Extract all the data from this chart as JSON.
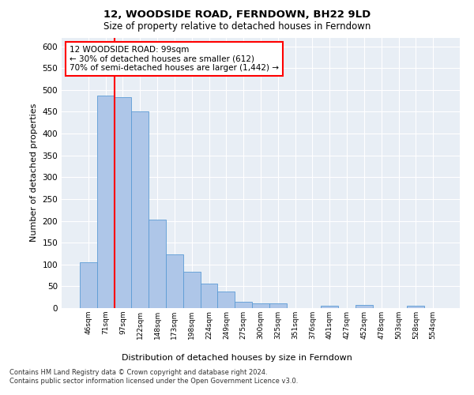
{
  "title1": "12, WOODSIDE ROAD, FERNDOWN, BH22 9LD",
  "title2": "Size of property relative to detached houses in Ferndown",
  "xlabel": "Distribution of detached houses by size in Ferndown",
  "ylabel": "Number of detached properties",
  "categories": [
    "46sqm",
    "71sqm",
    "97sqm",
    "122sqm",
    "148sqm",
    "173sqm",
    "198sqm",
    "224sqm",
    "249sqm",
    "275sqm",
    "300sqm",
    "325sqm",
    "351sqm",
    "376sqm",
    "401sqm",
    "427sqm",
    "452sqm",
    "478sqm",
    "503sqm",
    "528sqm",
    "554sqm"
  ],
  "values": [
    105,
    487,
    483,
    450,
    203,
    123,
    83,
    57,
    38,
    15,
    10,
    10,
    0,
    0,
    5,
    0,
    7,
    0,
    0,
    6,
    0
  ],
  "bar_color": "#aec6e8",
  "bar_edge_color": "#5b9bd5",
  "annotation_text": "12 WOODSIDE ROAD: 99sqm\n← 30% of detached houses are smaller (612)\n70% of semi-detached houses are larger (1,442) →",
  "annotation_box_color": "white",
  "annotation_box_edge_color": "red",
  "vline_color": "red",
  "ylim": [
    0,
    620
  ],
  "yticks": [
    0,
    50,
    100,
    150,
    200,
    250,
    300,
    350,
    400,
    450,
    500,
    550,
    600
  ],
  "footnote": "Contains HM Land Registry data © Crown copyright and database right 2024.\nContains public sector information licensed under the Open Government Licence v3.0.",
  "bg_color": "#e8eef5",
  "grid_color": "white"
}
